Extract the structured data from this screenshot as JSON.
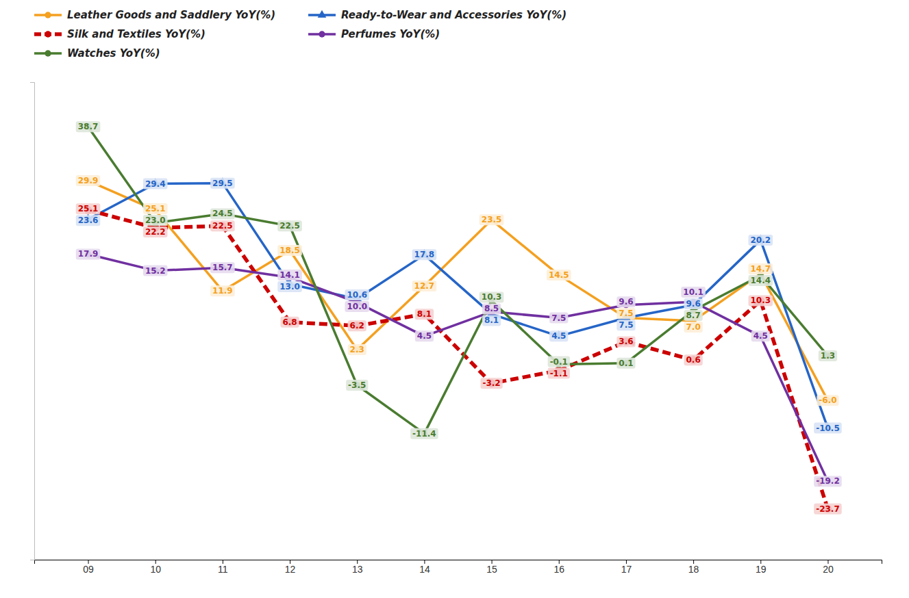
{
  "chart_data": {
    "type": "line",
    "x": [
      9,
      10,
      11,
      12,
      13,
      14,
      15,
      16,
      17,
      18,
      19,
      20
    ],
    "xlim": [
      8.2,
      20.8
    ],
    "xticks": [
      {
        "value": 9,
        "label": "09"
      },
      10,
      11,
      12,
      13,
      14,
      15,
      16,
      17,
      18,
      19,
      20
    ],
    "ylim": [
      -32,
      46
    ],
    "tick_labels": "x",
    "grid": false,
    "legend": "upper left",
    "data_labels": true,
    "series": [
      {
        "name": "Leather Goods and Saddlery YoY(%)",
        "color": "#F4A020",
        "marker": "circle",
        "line_style": "solid",
        "values": [
          29.9,
          25.1,
          11.9,
          18.5,
          2.3,
          12.7,
          23.5,
          14.5,
          7.5,
          7.0,
          14.7,
          -6.0
        ],
        "value_labels": [
          "29.9",
          "25.1",
          "11.9",
          "18.5",
          "2.3",
          "12.7",
          "23.5",
          "14.5",
          "7.5",
          "7.0",
          "14.7",
          "-6.0"
        ]
      },
      {
        "name": "Ready-to-Wear and Accessories YoY(%)",
        "color": "#2565C7",
        "marker": "triangle",
        "line_style": "solid",
        "values": [
          23.6,
          29.4,
          29.5,
          13.0,
          10.6,
          17.8,
          8.1,
          4.5,
          7.5,
          9.6,
          20.2,
          -10.5
        ],
        "value_labels": [
          "23.6",
          "29.4",
          "29.5",
          "13.0",
          "10.6",
          "17.8",
          "8.1",
          "4.5",
          "7.5",
          "9.6",
          "20.2",
          "-10.5"
        ]
      },
      {
        "name": "Silk and Textiles YoY(%)",
        "color": "#CC0000",
        "marker": "circle",
        "line_style": "dashed",
        "values": [
          25.1,
          22.2,
          22.5,
          6.8,
          6.2,
          8.1,
          -3.2,
          -1.1,
          3.6,
          0.6,
          10.3,
          -23.7
        ],
        "value_labels": [
          "25.1",
          "22.2",
          "22.5",
          "6.8",
          "6.2",
          "8.1",
          "-3.2",
          "-1.1",
          "3.6",
          "0.6",
          "10.3",
          "-23.7"
        ]
      },
      {
        "name": "Perfumes YoY(%)",
        "color": "#7030A0",
        "marker": "circle",
        "line_style": "solid",
        "values": [
          17.9,
          15.2,
          15.7,
          14.1,
          10.0,
          4.5,
          8.5,
          7.5,
          9.6,
          10.1,
          4.5,
          -19.2
        ],
        "value_labels": [
          "17.9",
          "15.2",
          "15.7",
          "14.1",
          "10.0",
          "4.5",
          "8.5",
          "7.5",
          "9.6",
          "10.1",
          "4.5",
          "-19.2"
        ]
      },
      {
        "name": "Watches YoY(%)",
        "color": "#4A7C30",
        "marker": "circle",
        "line_style": "solid",
        "values": [
          38.7,
          23.0,
          24.5,
          22.5,
          -3.5,
          -11.4,
          10.3,
          -0.1,
          0.1,
          8.7,
          14.4,
          1.3
        ],
        "value_labels": [
          "38.7",
          "23.0",
          "24.5",
          "22.5",
          "-3.5",
          "-11.4",
          "10.3",
          "-0.1",
          "0.1",
          "8.7",
          "14.4",
          "1.3"
        ]
      }
    ]
  }
}
